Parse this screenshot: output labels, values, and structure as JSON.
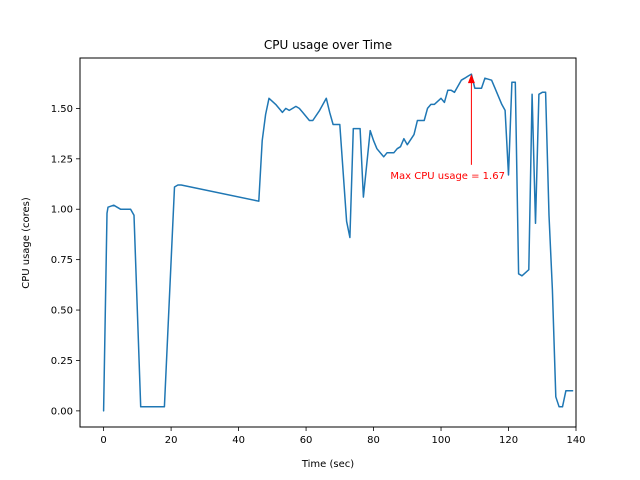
{
  "chart_data": {
    "type": "line",
    "title": "CPU usage over Time",
    "xlabel": "Time (sec)",
    "ylabel": "CPU usage (cores)",
    "xlim": [
      -7,
      140
    ],
    "ylim": [
      -0.08,
      1.75
    ],
    "xticks": [
      0,
      20,
      40,
      60,
      80,
      100,
      120,
      140
    ],
    "xtick_labels": [
      "0",
      "20",
      "40",
      "60",
      "80",
      "100",
      "120",
      "140"
    ],
    "yticks": [
      0.0,
      0.25,
      0.5,
      0.75,
      1.0,
      1.25,
      1.5
    ],
    "ytick_labels": [
      "0.00",
      "0.25",
      "0.50",
      "0.75",
      "1.00",
      "1.25",
      "1.50"
    ],
    "grid": false,
    "line_color": "#1f77b4",
    "series": [
      {
        "x": [
          0,
          1,
          1.3,
          3,
          5,
          8,
          9,
          11,
          13,
          18,
          21,
          22,
          23,
          46,
          47,
          48,
          49,
          51,
          53,
          54,
          55,
          56,
          57,
          58,
          59,
          61,
          62,
          64,
          66,
          67,
          68,
          69,
          70,
          72,
          73,
          74,
          75,
          76,
          77,
          79,
          80,
          81,
          83,
          84,
          86,
          87,
          88,
          89,
          90,
          92,
          93,
          95,
          96,
          97,
          98,
          100,
          101,
          102,
          103,
          104,
          106,
          107,
          108,
          109,
          110,
          111,
          112,
          113,
          115,
          116,
          118,
          119,
          120,
          121,
          122,
          123,
          124,
          126,
          127,
          128,
          129,
          130,
          131,
          132,
          133,
          134,
          135,
          136,
          137,
          138,
          139
        ],
        "y": [
          0.0,
          0.98,
          1.01,
          1.02,
          1.0,
          1.0,
          0.97,
          0.02,
          0.02,
          0.02,
          1.11,
          1.12,
          1.12,
          1.04,
          1.34,
          1.47,
          1.55,
          1.52,
          1.48,
          1.5,
          1.49,
          1.5,
          1.51,
          1.5,
          1.48,
          1.44,
          1.44,
          1.49,
          1.55,
          1.48,
          1.42,
          1.42,
          1.42,
          0.94,
          0.86,
          1.4,
          1.4,
          1.4,
          1.06,
          1.39,
          1.34,
          1.3,
          1.26,
          1.28,
          1.28,
          1.3,
          1.31,
          1.35,
          1.32,
          1.37,
          1.44,
          1.44,
          1.5,
          1.52,
          1.52,
          1.55,
          1.53,
          1.59,
          1.59,
          1.58,
          1.64,
          1.65,
          1.66,
          1.67,
          1.6,
          1.6,
          1.6,
          1.65,
          1.64,
          1.6,
          1.52,
          1.49,
          1.17,
          1.63,
          1.63,
          0.68,
          0.67,
          0.7,
          1.57,
          0.93,
          1.57,
          1.58,
          1.58,
          0.97,
          0.6,
          0.07,
          0.02,
          0.02,
          0.1,
          0.1,
          0.1
        ]
      }
    ],
    "annotation": {
      "text": "Max CPU usage = 1.67",
      "color": "#ff0000",
      "point": [
        109,
        1.67
      ],
      "text_anchor": [
        85,
        1.245
      ]
    }
  }
}
